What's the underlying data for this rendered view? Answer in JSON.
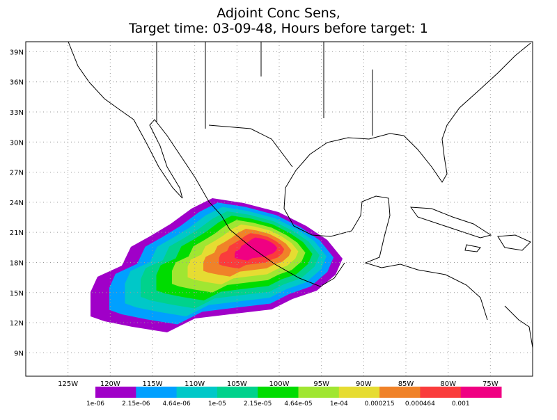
{
  "title": [
    "Adjoint Conc Sens,",
    "Target time: 03-09-48, Hours before target: 1"
  ],
  "lat_labels": [
    {
      "value": 9,
      "label": "9N"
    },
    {
      "value": 12,
      "label": "12N"
    },
    {
      "value": 15,
      "label": "15N"
    },
    {
      "value": 18,
      "label": "18N"
    },
    {
      "value": 21,
      "label": "21N"
    },
    {
      "value": 24,
      "label": "24N"
    },
    {
      "value": 27,
      "label": "27N"
    },
    {
      "value": 30,
      "label": "30N"
    },
    {
      "value": 33,
      "label": "33N"
    },
    {
      "value": 36,
      "label": "36N"
    },
    {
      "value": 39,
      "label": "39N"
    }
  ],
  "lon_labels": [
    {
      "value": -125,
      "label": "125W"
    },
    {
      "value": -120,
      "label": "120W"
    },
    {
      "value": -115,
      "label": "115W"
    },
    {
      "value": -110,
      "label": "110W"
    },
    {
      "value": -105,
      "label": "105W"
    },
    {
      "value": -100,
      "label": "100W"
    },
    {
      "value": -95,
      "label": "95W"
    },
    {
      "value": -90,
      "label": "90W"
    },
    {
      "value": -85,
      "label": "85W"
    },
    {
      "value": -80,
      "label": "80W"
    },
    {
      "value": -75,
      "label": "75W"
    }
  ],
  "colorbar": [
    {
      "color": "#a000c8",
      "label": "1e-06"
    },
    {
      "color": "#00a0ff",
      "label": "2.15e-06"
    },
    {
      "color": "#00c8c8",
      "label": "4.64e-06"
    },
    {
      "color": "#00d28c",
      "label": "1e-05"
    },
    {
      "color": "#00dc00",
      "label": "2.15e-05"
    },
    {
      "color": "#a0e632",
      "label": "4.64e-05"
    },
    {
      "color": "#e6dc32",
      "label": "1e-04"
    },
    {
      "color": "#f08228",
      "label": "0.000215"
    },
    {
      "color": "#fa3c3c",
      "label": "0.000464"
    },
    {
      "color": "#f00082",
      "label": "0.001"
    }
  ]
}
